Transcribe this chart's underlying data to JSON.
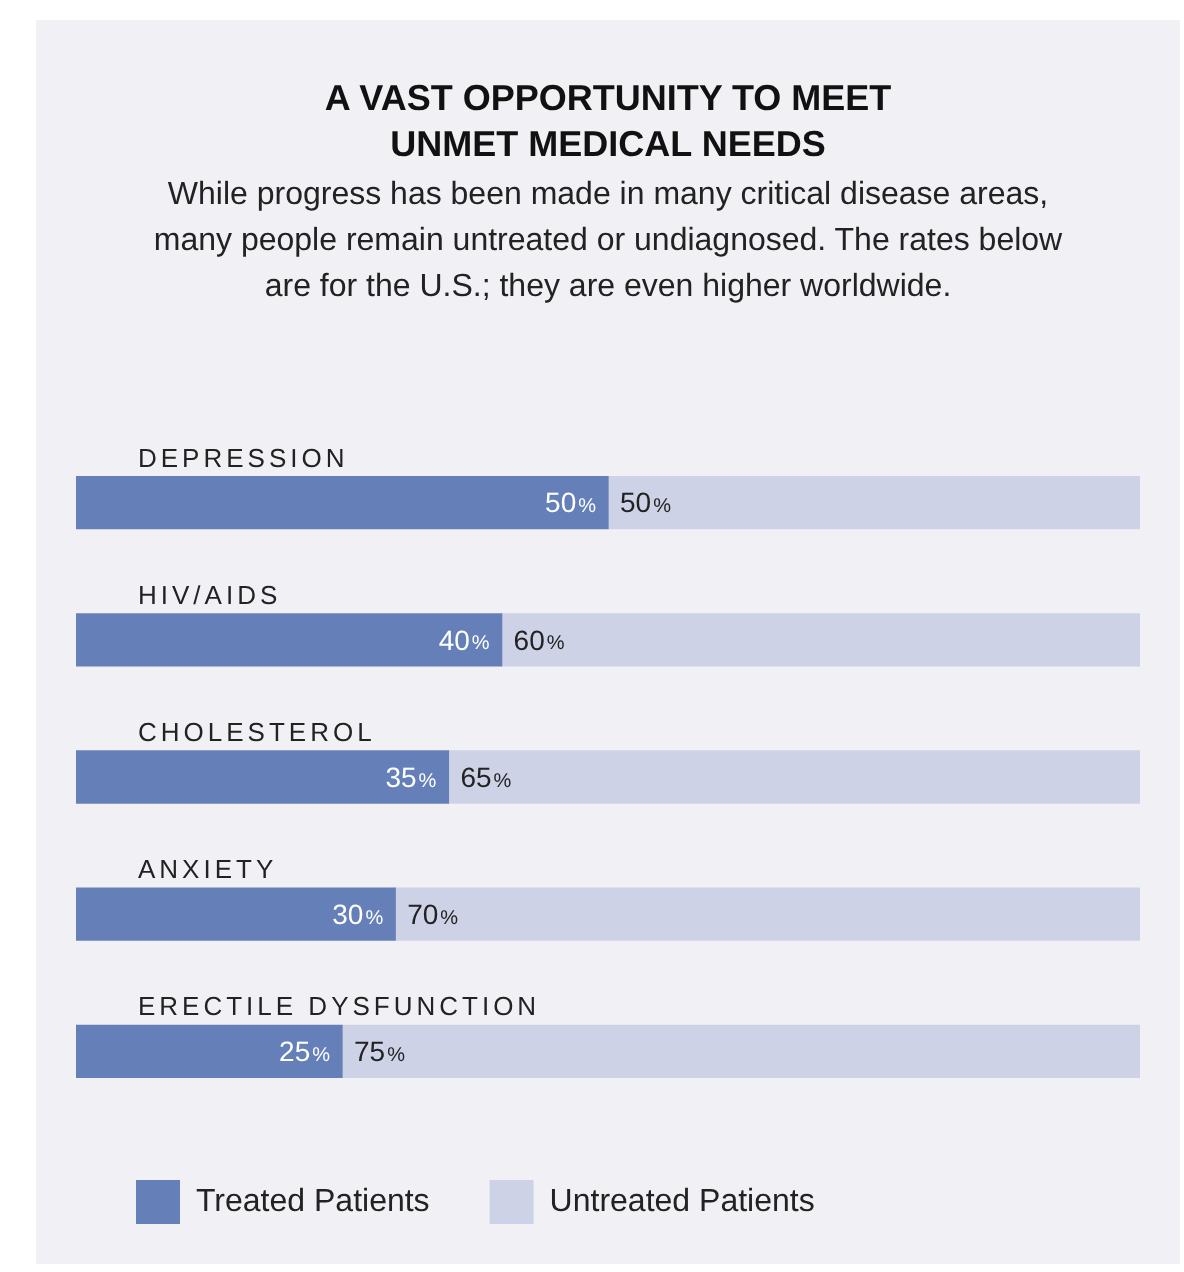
{
  "chart_data": {
    "type": "bar",
    "orientation": "horizontal",
    "stacked": true,
    "title": "A VAST OPPORTUNITY TO MEET\nUNMET MEDICAL NEEDS",
    "subtitle": "While progress has been made in many critical disease areas, many people remain untreated or undiagnosed. The rates below are for the U.S.; they are even higher worldwide.",
    "categories": [
      "DEPRESSION",
      "HIV/AIDS",
      "CHOLESTEROL",
      "ANXIETY",
      "ERECTILE DYSFUNCTION"
    ],
    "series": [
      {
        "name": "Treated Patients",
        "color": "#6580b8",
        "values": [
          50,
          40,
          35,
          30,
          25
        ],
        "value_labels": [
          "50%",
          "40%",
          "35%",
          "30%",
          "25%"
        ]
      },
      {
        "name": "Untreated Patients",
        "color": "#cdd2e6",
        "values": [
          50,
          60,
          65,
          70,
          75
        ],
        "value_labels": [
          "50%",
          "60%",
          "65%",
          "70%",
          "75%"
        ]
      }
    ],
    "xlim": [
      0,
      100
    ],
    "legend": "bottom left"
  }
}
